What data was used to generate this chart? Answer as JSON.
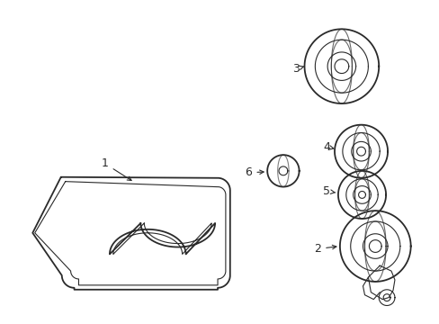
{
  "background_color": "#ffffff",
  "line_color": "#2a2a2a",
  "lw_outer": 1.3,
  "lw_inner": 0.8,
  "fig_width": 4.89,
  "fig_height": 3.6,
  "dpi": 100
}
